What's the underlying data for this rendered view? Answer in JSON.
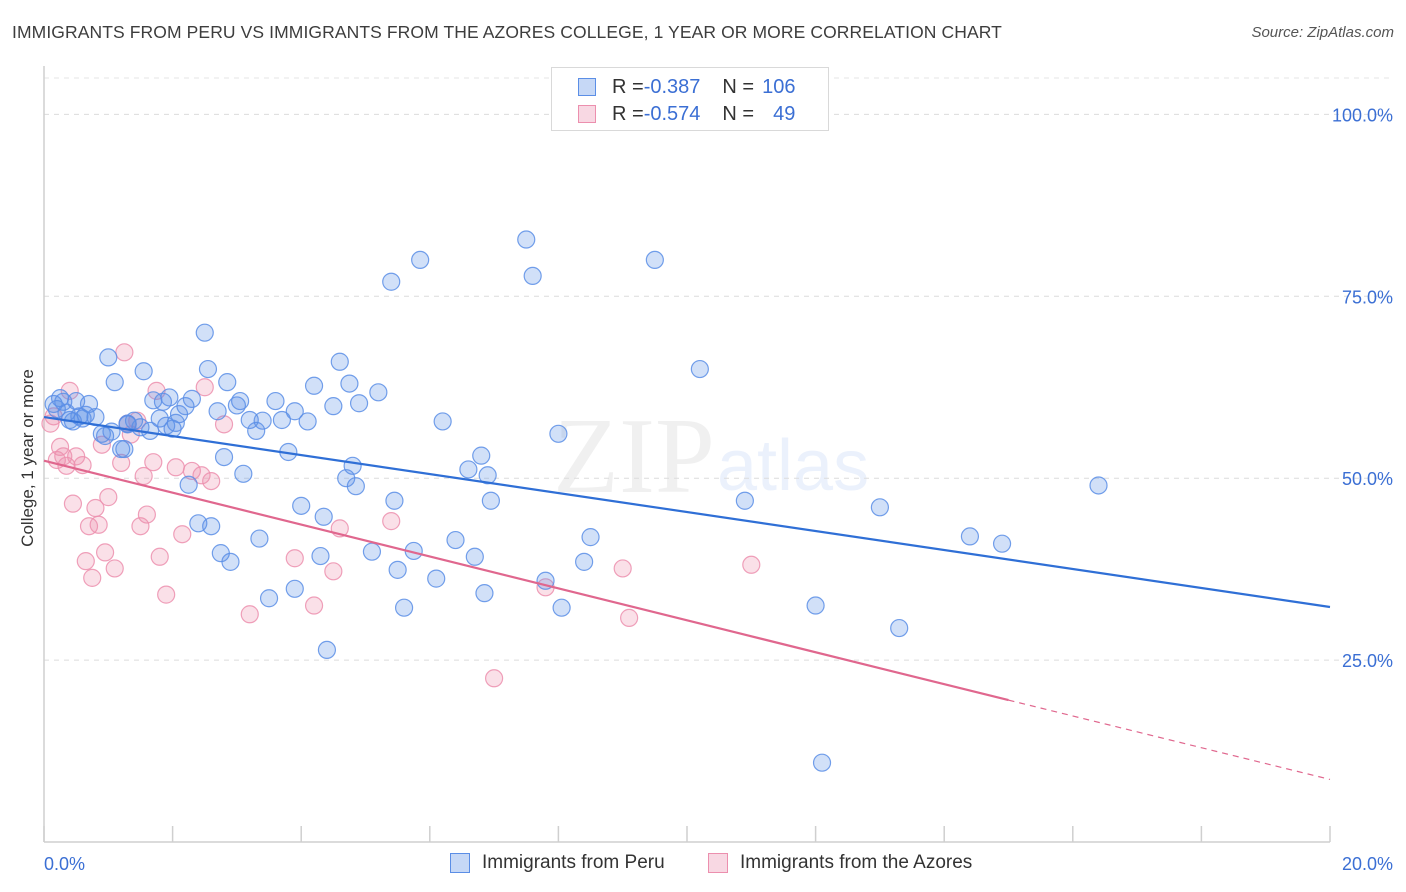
{
  "title": "IMMIGRANTS FROM PERU VS IMMIGRANTS FROM THE AZORES COLLEGE, 1 YEAR OR MORE CORRELATION CHART",
  "source": "Source: ZipAtlas.com",
  "watermark": {
    "zip": "ZIP",
    "atlas": "atlas"
  },
  "legend_stats": [
    {
      "r_label": "R = ",
      "r_value": "-0.387",
      "n_label": "N = ",
      "n_value": "106"
    },
    {
      "r_label": "R = ",
      "r_value": "-0.574",
      "n_label": "N = ",
      "n_value": "49"
    }
  ],
  "chart_data": {
    "type": "scatter",
    "title": "IMMIGRANTS FROM PERU VS IMMIGRANTS FROM THE AZORES COLLEGE, 1 YEAR OR MORE CORRELATION CHART",
    "xlabel": "",
    "ylabel": "College, 1 year or more",
    "xlim": [
      0,
      20
    ],
    "ylim": [
      0,
      105
    ],
    "x_tick_labels": [
      "0.0%",
      "20.0%"
    ],
    "y_tick_labels": [
      "25.0%",
      "50.0%",
      "75.0%",
      "100.0%"
    ],
    "y_ticks": [
      25,
      50,
      75,
      100
    ],
    "grid": true,
    "legend_placement": "bottom",
    "colors": {
      "peru": "#5b8ee6",
      "azores": "#ec8fae",
      "peru_line": "#2f6fd6",
      "azores_line": "#e0678e",
      "tick_text": "#3b6fd4"
    },
    "series": [
      {
        "name": "Immigrants from Peru",
        "trend": {
          "x": [
            0,
            20
          ],
          "y": [
            58.4,
            32.3
          ]
        },
        "points": [
          [
            0.15,
            60.2
          ],
          [
            0.2,
            59.5
          ],
          [
            0.25,
            61.0
          ],
          [
            0.3,
            60.5
          ],
          [
            0.35,
            59.0
          ],
          [
            0.4,
            58.0
          ],
          [
            0.45,
            57.8
          ],
          [
            0.5,
            60.6
          ],
          [
            0.55,
            58.5
          ],
          [
            0.6,
            58.2
          ],
          [
            0.7,
            60.2
          ],
          [
            0.8,
            58.4
          ],
          [
            0.9,
            56.1
          ],
          [
            0.95,
            55.8
          ],
          [
            1.0,
            66.6
          ],
          [
            1.05,
            56.4
          ],
          [
            1.1,
            63.2
          ],
          [
            1.2,
            54.0
          ],
          [
            1.25,
            54.0
          ],
          [
            1.3,
            57.4
          ],
          [
            1.4,
            57.9
          ],
          [
            1.5,
            57.0
          ],
          [
            1.55,
            64.7
          ],
          [
            1.65,
            56.5
          ],
          [
            1.7,
            60.7
          ],
          [
            1.8,
            58.2
          ],
          [
            1.85,
            60.5
          ],
          [
            1.9,
            57.2
          ],
          [
            1.95,
            61.1
          ],
          [
            2.0,
            56.8
          ],
          [
            2.05,
            57.6
          ],
          [
            2.2,
            59.9
          ],
          [
            2.25,
            49.1
          ],
          [
            2.3,
            60.9
          ],
          [
            2.4,
            43.8
          ],
          [
            2.5,
            70.0
          ],
          [
            2.55,
            65.0
          ],
          [
            2.6,
            43.4
          ],
          [
            2.7,
            59.2
          ],
          [
            2.75,
            39.7
          ],
          [
            2.8,
            52.9
          ],
          [
            2.85,
            63.2
          ],
          [
            2.9,
            38.5
          ],
          [
            3.0,
            60.0
          ],
          [
            3.05,
            60.6
          ],
          [
            3.1,
            50.6
          ],
          [
            3.2,
            58.0
          ],
          [
            3.3,
            56.5
          ],
          [
            3.35,
            41.7
          ],
          [
            3.4,
            57.9
          ],
          [
            3.5,
            33.5
          ],
          [
            3.6,
            60.6
          ],
          [
            3.7,
            58.0
          ],
          [
            3.8,
            53.6
          ],
          [
            3.9,
            34.8
          ],
          [
            4.0,
            46.2
          ],
          [
            4.1,
            57.8
          ],
          [
            4.2,
            62.7
          ],
          [
            4.3,
            39.3
          ],
          [
            4.35,
            44.7
          ],
          [
            4.4,
            26.4
          ],
          [
            4.5,
            59.9
          ],
          [
            4.6,
            66.0
          ],
          [
            4.7,
            50.0
          ],
          [
            4.75,
            63.0
          ],
          [
            4.8,
            51.7
          ],
          [
            4.85,
            48.9
          ],
          [
            4.9,
            60.3
          ],
          [
            5.1,
            39.9
          ],
          [
            5.2,
            61.8
          ],
          [
            5.4,
            77.0
          ],
          [
            5.45,
            46.9
          ],
          [
            5.5,
            37.4
          ],
          [
            5.6,
            32.2
          ],
          [
            5.75,
            40.0
          ],
          [
            5.85,
            80.0
          ],
          [
            6.1,
            36.2
          ],
          [
            6.2,
            57.8
          ],
          [
            6.4,
            41.5
          ],
          [
            6.6,
            51.2
          ],
          [
            6.7,
            39.2
          ],
          [
            6.8,
            53.1
          ],
          [
            6.85,
            34.2
          ],
          [
            6.9,
            50.4
          ],
          [
            6.95,
            46.9
          ],
          [
            7.5,
            82.8
          ],
          [
            7.6,
            77.8
          ],
          [
            7.8,
            35.9
          ],
          [
            8.0,
            56.1
          ],
          [
            8.05,
            32.2
          ],
          [
            8.4,
            38.5
          ],
          [
            8.5,
            41.9
          ],
          [
            9.5,
            80.0
          ],
          [
            10.2,
            65.0
          ],
          [
            10.9,
            46.9
          ],
          [
            12.0,
            32.5
          ],
          [
            12.1,
            10.9
          ],
          [
            13.0,
            46.0
          ],
          [
            13.3,
            29.4
          ],
          [
            14.4,
            42.0
          ],
          [
            14.9,
            41.0
          ],
          [
            16.4,
            49.0
          ],
          [
            1.3,
            57.5
          ],
          [
            2.1,
            58.8
          ],
          [
            0.65,
            58.7
          ],
          [
            3.9,
            59.2
          ]
        ]
      },
      {
        "name": "Immigrants from the Azores",
        "trend": {
          "x": [
            0,
            15
          ],
          "y": [
            52.4,
            19.5
          ]
        },
        "trend_dashed": {
          "x": [
            15,
            20
          ],
          "y": [
            19.5,
            8.6
          ]
        },
        "points": [
          [
            0.1,
            57.5
          ],
          [
            0.15,
            58.5
          ],
          [
            0.2,
            52.5
          ],
          [
            0.25,
            54.3
          ],
          [
            0.3,
            53.0
          ],
          [
            0.35,
            51.7
          ],
          [
            0.4,
            62.0
          ],
          [
            0.45,
            46.5
          ],
          [
            0.5,
            53.0
          ],
          [
            0.6,
            51.8
          ],
          [
            0.65,
            38.6
          ],
          [
            0.7,
            43.4
          ],
          [
            0.75,
            36.3
          ],
          [
            0.8,
            45.9
          ],
          [
            0.85,
            43.6
          ],
          [
            0.9,
            54.6
          ],
          [
            0.95,
            39.8
          ],
          [
            1.0,
            47.4
          ],
          [
            1.1,
            37.6
          ],
          [
            1.2,
            52.1
          ],
          [
            1.3,
            57.5
          ],
          [
            1.35,
            56.0
          ],
          [
            1.45,
            57.9
          ],
          [
            1.5,
            43.4
          ],
          [
            1.55,
            50.3
          ],
          [
            1.6,
            45.0
          ],
          [
            1.7,
            52.2
          ],
          [
            1.8,
            39.2
          ],
          [
            1.9,
            34.0
          ],
          [
            2.05,
            51.5
          ],
          [
            2.15,
            42.3
          ],
          [
            2.3,
            51.0
          ],
          [
            2.45,
            50.4
          ],
          [
            2.5,
            62.5
          ],
          [
            2.6,
            49.6
          ],
          [
            2.8,
            57.4
          ],
          [
            3.2,
            31.3
          ],
          [
            3.9,
            39.0
          ],
          [
            4.2,
            32.5
          ],
          [
            4.5,
            37.2
          ],
          [
            4.6,
            43.1
          ],
          [
            5.4,
            44.1
          ],
          [
            7.0,
            22.5
          ],
          [
            7.8,
            35.0
          ],
          [
            9.0,
            37.6
          ],
          [
            9.1,
            30.8
          ],
          [
            11.0,
            38.1
          ],
          [
            1.25,
            67.3
          ],
          [
            1.75,
            62.0
          ]
        ]
      }
    ]
  }
}
